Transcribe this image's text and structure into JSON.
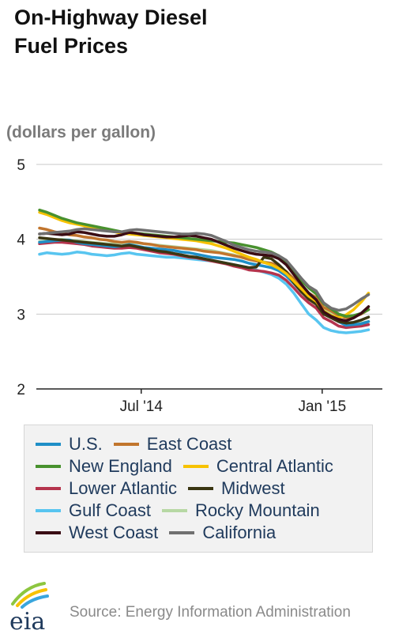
{
  "chart_data": {
    "type": "line",
    "title_lines": [
      "On-Highway Diesel",
      "Fuel Prices"
    ],
    "ylabel": "(dollars per gallon)",
    "ylim": [
      2,
      5
    ],
    "yticks": [
      "2",
      "3",
      "4",
      "5"
    ],
    "xlim": [
      0,
      45
    ],
    "xticks": [
      {
        "label": "Jul '14",
        "week": 13.6
      },
      {
        "label": "Jan '15",
        "week": 37.8
      }
    ],
    "grid": "horizontal",
    "legend": "bottom",
    "series": [
      {
        "name": "U.S.",
        "color": "#1f8fc7",
        "values": [
          3.96,
          3.97,
          3.98,
          3.99,
          3.99,
          3.96,
          3.94,
          3.93,
          3.92,
          3.91,
          3.9,
          3.91,
          3.93,
          3.91,
          3.89,
          3.88,
          3.87,
          3.86,
          3.85,
          3.83,
          3.82,
          3.8,
          3.78,
          3.76,
          3.75,
          3.74,
          3.73,
          3.71,
          3.68,
          3.66,
          3.64,
          3.62,
          3.58,
          3.51,
          3.41,
          3.3,
          3.21,
          3.15,
          3.01,
          2.97,
          2.9,
          2.85,
          2.86,
          2.87,
          2.9
        ]
      },
      {
        "name": "East Coast",
        "color": "#c1752d",
        "values": [
          4.15,
          4.13,
          4.1,
          4.08,
          4.06,
          4.05,
          4.03,
          4.02,
          4.0,
          3.99,
          3.97,
          3.96,
          3.97,
          3.96,
          3.94,
          3.93,
          3.91,
          3.9,
          3.89,
          3.88,
          3.87,
          3.86,
          3.84,
          3.83,
          3.82,
          3.8,
          3.78,
          3.76,
          3.73,
          3.71,
          3.69,
          3.68,
          3.64,
          3.57,
          3.47,
          3.37,
          3.28,
          3.22,
          3.09,
          3.04,
          2.98,
          2.95,
          2.96,
          3.0,
          3.06
        ]
      },
      {
        "name": "New England",
        "color": "#48912e",
        "values": [
          4.39,
          4.36,
          4.32,
          4.28,
          4.25,
          4.22,
          4.2,
          4.18,
          4.16,
          4.14,
          4.12,
          4.1,
          4.09,
          4.08,
          4.07,
          4.06,
          4.05,
          4.04,
          4.03,
          4.02,
          4.01,
          4.0,
          3.99,
          3.98,
          3.97,
          3.96,
          3.95,
          3.93,
          3.91,
          3.89,
          3.86,
          3.83,
          3.78,
          3.69,
          3.57,
          3.45,
          3.35,
          3.27,
          3.14,
          3.07,
          3.0,
          2.97,
          2.98,
          3.01,
          3.06
        ]
      },
      {
        "name": "Central Atlantic",
        "color": "#f7c200",
        "values": [
          4.36,
          4.33,
          4.29,
          4.25,
          4.22,
          4.2,
          4.18,
          4.16,
          4.14,
          4.12,
          4.1,
          4.08,
          4.07,
          4.06,
          4.05,
          4.04,
          4.03,
          4.02,
          4.01,
          4.0,
          3.99,
          3.98,
          3.96,
          3.94,
          3.91,
          3.88,
          3.84,
          3.8,
          3.76,
          3.73,
          3.69,
          3.66,
          3.61,
          3.54,
          3.44,
          3.34,
          3.24,
          3.17,
          3.04,
          2.98,
          2.95,
          2.99,
          3.06,
          3.16,
          3.28
        ]
      },
      {
        "name": "Lower Atlantic",
        "color": "#b5344d",
        "values": [
          3.94,
          3.95,
          3.96,
          3.96,
          3.95,
          3.94,
          3.93,
          3.91,
          3.9,
          3.89,
          3.88,
          3.88,
          3.89,
          3.88,
          3.86,
          3.84,
          3.82,
          3.81,
          3.8,
          3.78,
          3.76,
          3.75,
          3.73,
          3.71,
          3.69,
          3.67,
          3.64,
          3.62,
          3.59,
          3.58,
          3.57,
          3.55,
          3.52,
          3.45,
          3.35,
          3.24,
          3.15,
          3.08,
          2.95,
          2.9,
          2.84,
          2.82,
          2.83,
          2.84,
          2.86
        ]
      },
      {
        "name": "Midwest",
        "color": "#3a3612",
        "values": [
          4.02,
          4.01,
          4.0,
          3.99,
          3.98,
          3.97,
          3.96,
          3.95,
          3.94,
          3.93,
          3.92,
          3.91,
          3.92,
          3.9,
          3.88,
          3.86,
          3.84,
          3.83,
          3.81,
          3.79,
          3.77,
          3.76,
          3.74,
          3.72,
          3.7,
          3.68,
          3.66,
          3.64,
          3.62,
          3.63,
          3.76,
          3.74,
          3.66,
          3.56,
          3.42,
          3.3,
          3.2,
          3.13,
          3.0,
          2.95,
          2.9,
          2.88,
          2.89,
          2.92,
          2.96
        ]
      },
      {
        "name": "Gulf Coast",
        "color": "#58c5f0",
        "values": [
          3.8,
          3.82,
          3.81,
          3.8,
          3.81,
          3.83,
          3.82,
          3.8,
          3.79,
          3.78,
          3.79,
          3.81,
          3.82,
          3.8,
          3.79,
          3.78,
          3.77,
          3.76,
          3.76,
          3.75,
          3.74,
          3.73,
          3.72,
          3.71,
          3.7,
          3.68,
          3.66,
          3.64,
          3.62,
          3.59,
          3.56,
          3.53,
          3.48,
          3.4,
          3.28,
          3.14,
          3.0,
          2.92,
          2.82,
          2.78,
          2.76,
          2.75,
          2.76,
          2.77,
          2.79
        ]
      },
      {
        "name": "Rocky Mountain",
        "color": "#b7d8a4",
        "values": [
          3.97,
          3.98,
          3.99,
          4.0,
          3.99,
          3.98,
          3.97,
          3.96,
          3.95,
          3.94,
          3.94,
          3.95,
          3.96,
          3.95,
          3.94,
          3.93,
          3.92,
          3.91,
          3.9,
          3.89,
          3.88,
          3.87,
          3.86,
          3.85,
          3.83,
          3.81,
          3.79,
          3.76,
          3.73,
          3.71,
          3.7,
          3.68,
          3.64,
          3.56,
          3.46,
          3.35,
          3.26,
          3.19,
          3.06,
          3.0,
          2.93,
          2.88,
          2.87,
          2.88,
          2.9
        ]
      },
      {
        "name": "West Coast",
        "color": "#3a0d14",
        "values": [
          4.07,
          4.08,
          4.07,
          4.06,
          4.07,
          4.1,
          4.09,
          4.07,
          4.05,
          4.04,
          4.04,
          4.06,
          4.09,
          4.08,
          4.06,
          4.05,
          4.04,
          4.03,
          4.03,
          4.04,
          4.05,
          4.04,
          4.02,
          4.0,
          3.96,
          3.92,
          3.88,
          3.85,
          3.82,
          3.8,
          3.79,
          3.78,
          3.74,
          3.66,
          3.53,
          3.4,
          3.28,
          3.19,
          3.03,
          2.97,
          2.93,
          2.91,
          2.95,
          3.01,
          3.1
        ]
      },
      {
        "name": "California",
        "color": "#707070",
        "values": [
          4.07,
          4.08,
          4.09,
          4.1,
          4.11,
          4.13,
          4.14,
          4.13,
          4.12,
          4.11,
          4.1,
          4.1,
          4.12,
          4.13,
          4.12,
          4.11,
          4.1,
          4.09,
          4.08,
          4.07,
          4.07,
          4.08,
          4.07,
          4.05,
          4.01,
          3.97,
          3.92,
          3.89,
          3.86,
          3.84,
          3.83,
          3.82,
          3.78,
          3.72,
          3.6,
          3.48,
          3.37,
          3.31,
          3.15,
          3.08,
          3.05,
          3.07,
          3.13,
          3.2,
          3.26
        ]
      }
    ]
  },
  "legend_rows": [
    [
      0,
      1
    ],
    [
      2,
      3
    ],
    [
      4,
      5
    ],
    [
      6,
      7
    ],
    [
      8,
      9
    ]
  ],
  "footer": {
    "logo_text": "eia",
    "logo_icon": "eia-sun-logo",
    "source": "Source: Energy Information Administration"
  }
}
